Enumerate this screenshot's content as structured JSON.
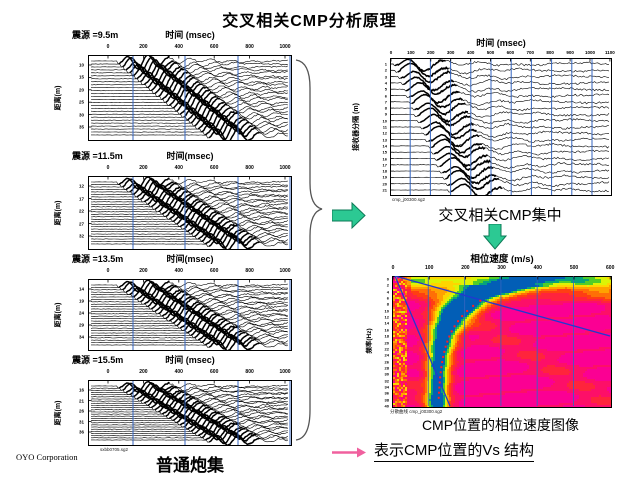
{
  "title": "交叉相关CMP分析原理",
  "footer": {
    "company": "OYO Corporation"
  },
  "shot_section": {
    "caption": "普通炮集",
    "file_label": "sxbb0705.sg2",
    "panels": [
      {
        "source_label": "震源 =9.5m",
        "time_label": "时间 (msec)",
        "x_ticks": [
          "0",
          "200",
          "400",
          "600",
          "800",
          "1000"
        ],
        "y_label": "距离(m)",
        "y_ticks": [
          "10",
          "15",
          "20",
          "25",
          "30",
          "35"
        ]
      },
      {
        "source_label": "震源 =11.5m",
        "time_label": "时间(msec)",
        "x_ticks": [
          "0",
          "200",
          "400",
          "600",
          "800",
          "1000"
        ],
        "y_label": "距离(m)",
        "y_ticks": [
          "12",
          "17",
          "22",
          "27",
          "32"
        ]
      },
      {
        "source_label": "震源 =13.5m",
        "time_label": "时间(msec)",
        "x_ticks": [
          "0",
          "200",
          "400",
          "600",
          "800",
          "1000"
        ],
        "y_label": "距离(m)",
        "y_ticks": [
          "14",
          "19",
          "24",
          "29",
          "34"
        ]
      },
      {
        "source_label": "震源 =15.5m",
        "time_label": "时间 (msec)",
        "x_ticks": [
          "0",
          "200",
          "400",
          "600",
          "800",
          "1000"
        ],
        "y_label": "距离(m)",
        "y_ticks": [
          "16",
          "21",
          "26",
          "31",
          "36"
        ]
      }
    ]
  },
  "cmp_section": {
    "time_label": "时间 (msec)",
    "x_ticks": [
      "0",
      "100",
      "200",
      "300",
      "400",
      "500",
      "600",
      "700",
      "800",
      "900",
      "1000",
      "1100"
    ],
    "y_label": "接收器分隔 (m)",
    "y_ticks": [
      "1",
      "2",
      "3",
      "4",
      "5",
      "6",
      "7",
      "8",
      "9",
      "10",
      "11",
      "12",
      "13",
      "14",
      "15",
      "16",
      "17",
      "18",
      "19",
      "20",
      "21"
    ],
    "file_label": "cmp_j00300.sg2",
    "caption": "交叉相关CMP集中"
  },
  "velocity_section": {
    "title": "相位速度 (m/s)",
    "x_ticks": [
      "0",
      "100",
      "200",
      "300",
      "400",
      "500",
      "600"
    ],
    "y_label": "频率(Hz)",
    "y_ticks": [
      "0",
      "2",
      "4",
      "6",
      "8",
      "10",
      "12",
      "14",
      "16",
      "18",
      "20",
      "22",
      "24",
      "26",
      "28",
      "30",
      "32",
      "34",
      "36",
      "38",
      "40"
    ],
    "file_label": "分散曲线 cmp_j00300.sg2",
    "caption": "CMP位置的相位速度图像"
  },
  "conclusion": "表示CMP位置的Vs 结构",
  "chart_data": [
    {
      "type": "line",
      "title": "common shot gather (4 panels)",
      "xlabel": "时间 (msec)",
      "ylabel": "距离(m)",
      "x_range": [
        0,
        1000
      ],
      "note": "seismic wiggle traces, diagonal first-arrival moveout, blue vertical gridlines"
    },
    {
      "type": "line",
      "title": "cross-correlation CMP gather",
      "xlabel": "时间 (msec)",
      "ylabel": "接收器分隔 (m)",
      "x_range": [
        0,
        1100
      ],
      "y_range": [
        1,
        21
      ]
    },
    {
      "type": "heatmap",
      "title": "相位速度 (m/s)",
      "xlabel": "相位速度 (m/s)",
      "ylabel": "频率(Hz)",
      "x_range": [
        0,
        600
      ],
      "y_range": [
        0,
        40
      ],
      "note": "phase-velocity spectrum, magenta background, green-blue dispersion ridge near 120-260 m/s with red picked dots and two blue guide lines"
    }
  ],
  "colors": {
    "grid_blue": "#3465c0",
    "arrow_green": "#2cc993",
    "arrow_green_border": "#0d7a57",
    "arrow_pink": "#f0609e",
    "pick_red": "#ff2020",
    "overlay_blue": "#2238d0",
    "trace_black": "#000000"
  }
}
